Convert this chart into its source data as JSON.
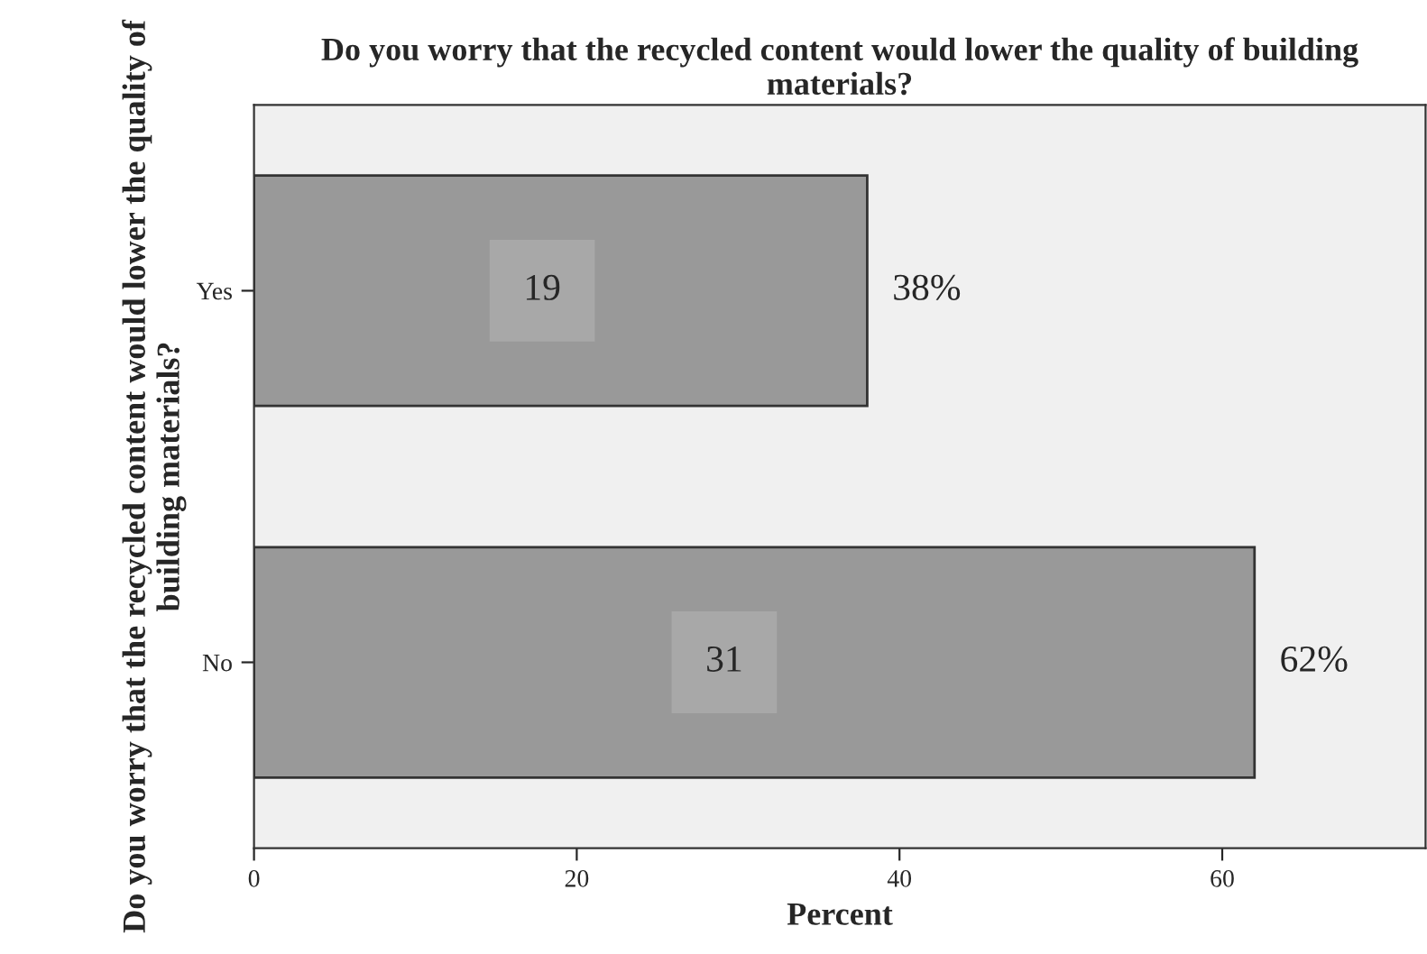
{
  "chart_data": {
    "type": "bar",
    "orientation": "horizontal",
    "title": "Do you worry that the recycled content would lower the quality of building materials?",
    "xlabel": "Percent",
    "ylabel": "Do you worry that the recycled content would lower the quality of building materials?",
    "categories": [
      "Yes",
      "No"
    ],
    "values": [
      38,
      62
    ],
    "color": "#999999",
    "value_labels": [
      "38%",
      "62%"
    ],
    "annotations": [
      "19",
      "31"
    ],
    "xlim": [
      0,
      72.6
    ],
    "xticks": [
      0,
      20,
      40,
      60
    ],
    "grid": false,
    "legend": false
  }
}
